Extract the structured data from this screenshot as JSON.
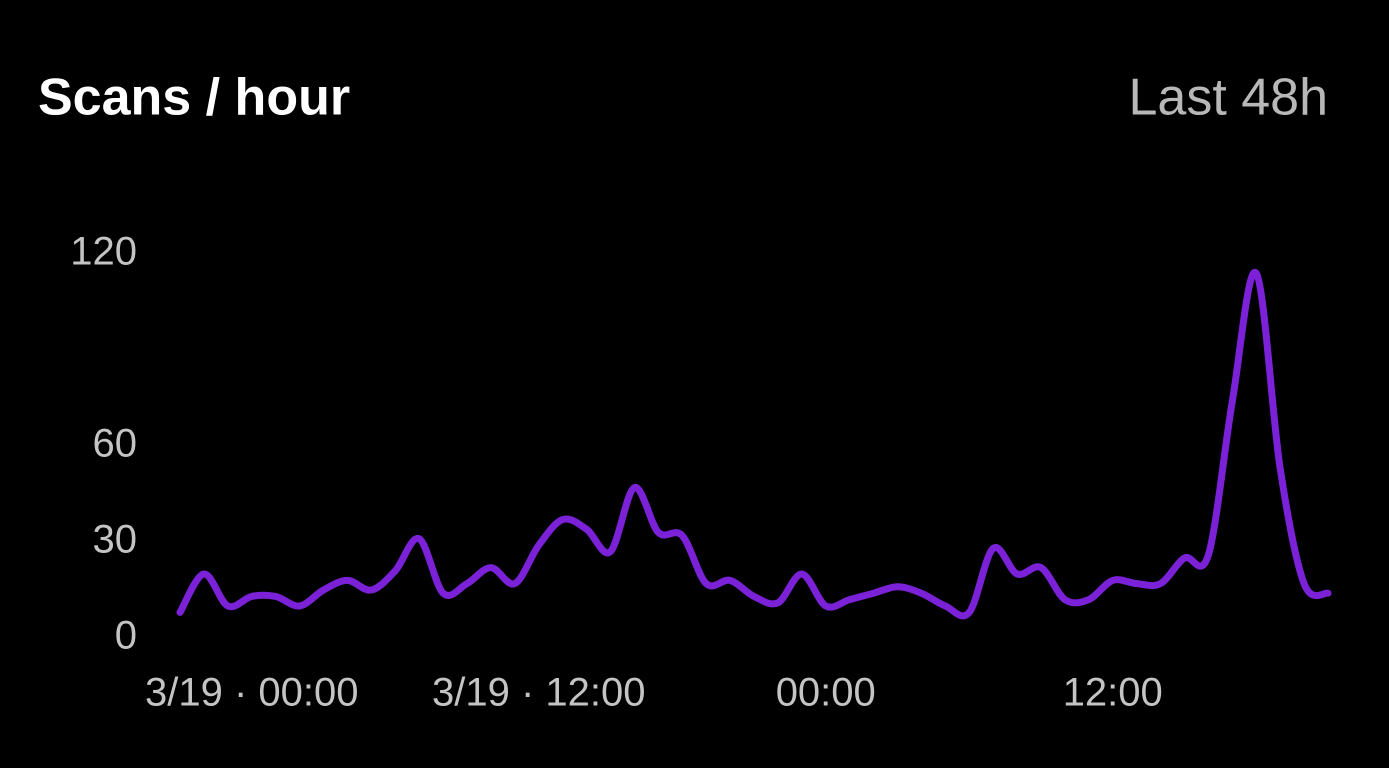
{
  "chart_data": {
    "type": "line",
    "title": "Scans / hour",
    "subtitle": "Last 48h",
    "categories": [
      null,
      null,
      null,
      "3/19 · 00:00",
      null,
      null,
      null,
      null,
      null,
      null,
      null,
      null,
      null,
      null,
      null,
      "3/19 · 12:00",
      null,
      null,
      null,
      null,
      null,
      null,
      null,
      null,
      null,
      null,
      null,
      "00:00",
      null,
      null,
      null,
      null,
      null,
      null,
      null,
      null,
      null,
      null,
      null,
      "12:00",
      null,
      null,
      null,
      null,
      null,
      null,
      null,
      null,
      null
    ],
    "values": [
      8,
      20,
      10,
      13,
      13,
      10,
      15,
      18,
      15,
      21,
      31,
      14,
      17,
      22,
      17,
      29,
      37,
      34,
      27,
      47,
      33,
      32,
      17,
      18,
      13,
      11,
      20,
      10,
      12,
      14,
      16,
      14,
      10,
      8,
      28,
      20,
      22,
      12,
      12,
      18,
      17,
      17,
      25,
      26,
      74,
      114,
      53,
      17,
      14
    ],
    "color": "#7b22d8",
    "ylim": [
      0,
      120
    ],
    "yticks": [
      0,
      30,
      60,
      120
    ],
    "grid": false
  }
}
